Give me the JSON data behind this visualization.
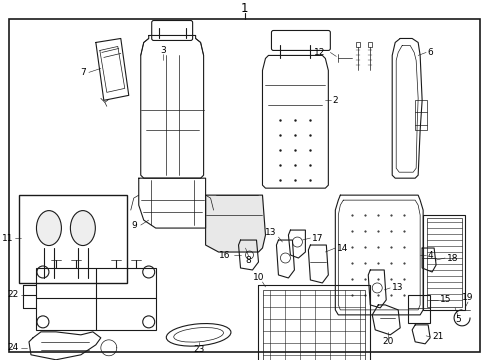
{
  "background_color": "#ffffff",
  "border_color": "#1a1a1a",
  "line_color": "#1a1a1a",
  "text_color": "#000000",
  "label_fontsize": 6.5,
  "title_fontsize": 8.5,
  "fig_width": 4.89,
  "fig_height": 3.6,
  "dpi": 100
}
